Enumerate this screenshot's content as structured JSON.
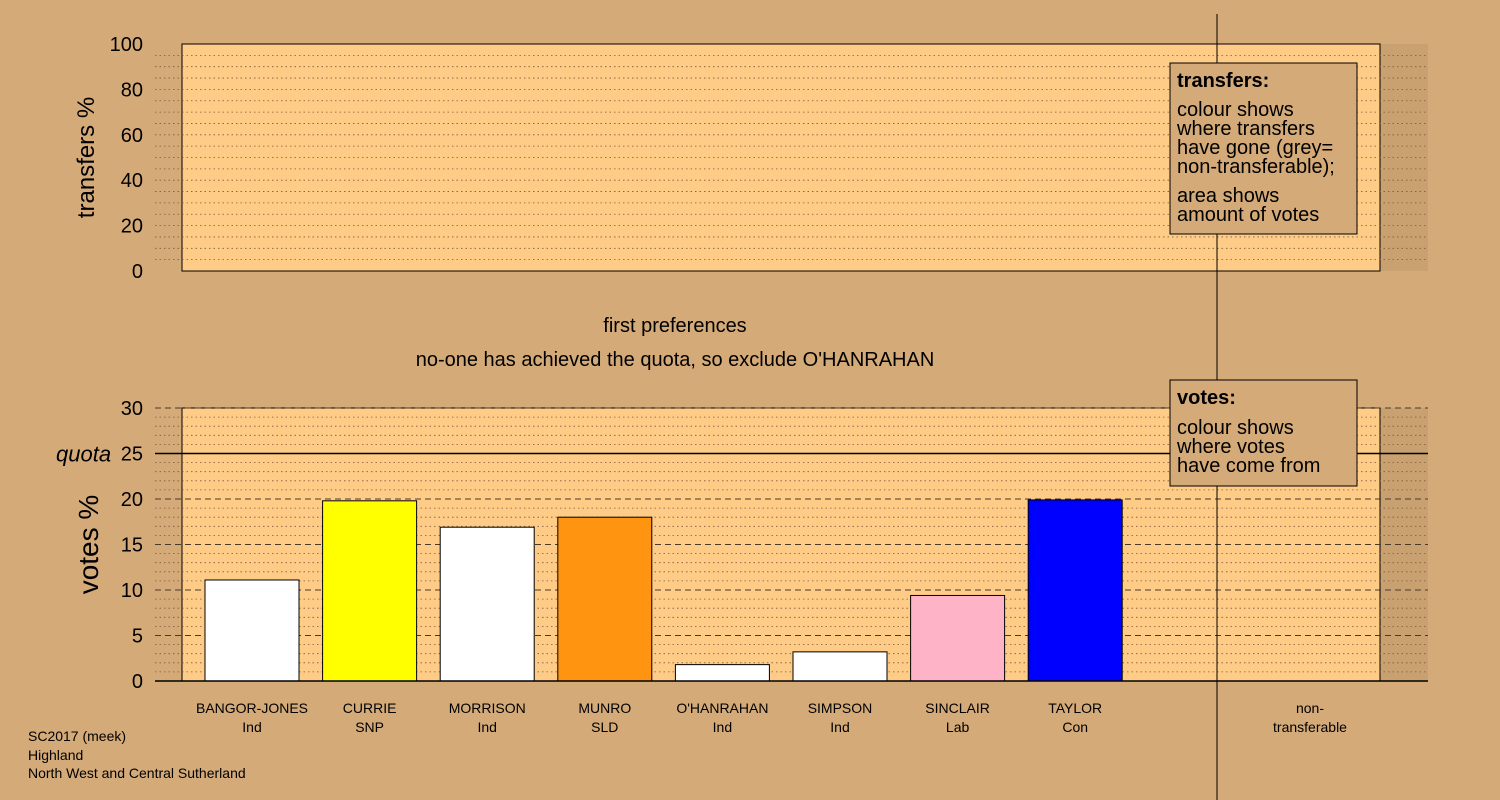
{
  "top_panel": {
    "ylabel": "transfers %",
    "yticks": [
      0,
      20,
      40,
      60,
      80,
      100
    ],
    "ylim": [
      0,
      100
    ],
    "legend": {
      "title": "transfers:",
      "lines_a": [
        "colour shows",
        "where transfers",
        "have gone (grey=",
        "non-transferable);"
      ],
      "lines_b": [
        "area shows",
        "amount of votes"
      ]
    }
  },
  "stage": {
    "title": "first preferences",
    "subtitle": "no-one has achieved the quota, so exclude O'HANRAHAN"
  },
  "chart_data": {
    "type": "bar",
    "ylabel": "votes %",
    "ylim": [
      0,
      30
    ],
    "yticks": [
      0,
      5,
      10,
      15,
      20,
      25,
      30
    ],
    "quota": 25,
    "quota_label": "quota",
    "categories": [
      {
        "name": "BANGOR-JONES",
        "party": "Ind",
        "value": 11.1,
        "color": "#ffffff"
      },
      {
        "name": "CURRIE",
        "party": "SNP",
        "value": 19.8,
        "color": "#ffff00"
      },
      {
        "name": "MORRISON",
        "party": "Ind",
        "value": 16.9,
        "color": "#ffffff"
      },
      {
        "name": "MUNRO",
        "party": "SLD",
        "value": 18.0,
        "color": "#ff9410"
      },
      {
        "name": "O'HANRAHAN",
        "party": "Ind",
        "value": 1.8,
        "color": "#ffffff"
      },
      {
        "name": "SIMPSON",
        "party": "Ind",
        "value": 3.2,
        "color": "#ffffff"
      },
      {
        "name": "SINCLAIR",
        "party": "Lab",
        "value": 9.4,
        "color": "#ffb3c6"
      },
      {
        "name": "TAYLOR",
        "party": "Con",
        "value": 19.9,
        "color": "#0000ff"
      }
    ],
    "nontransferable": {
      "line1": "non-",
      "line2": "transferable"
    },
    "legend": {
      "title": "votes:",
      "lines": [
        "colour shows",
        "where votes",
        "have come from"
      ]
    }
  },
  "colors": {
    "background": "#d4aa78",
    "panel": "#ffcc88"
  },
  "footer": {
    "line1": "SC2017 (meek)",
    "line2": "Highland",
    "line3": "North West and Central Sutherland"
  }
}
